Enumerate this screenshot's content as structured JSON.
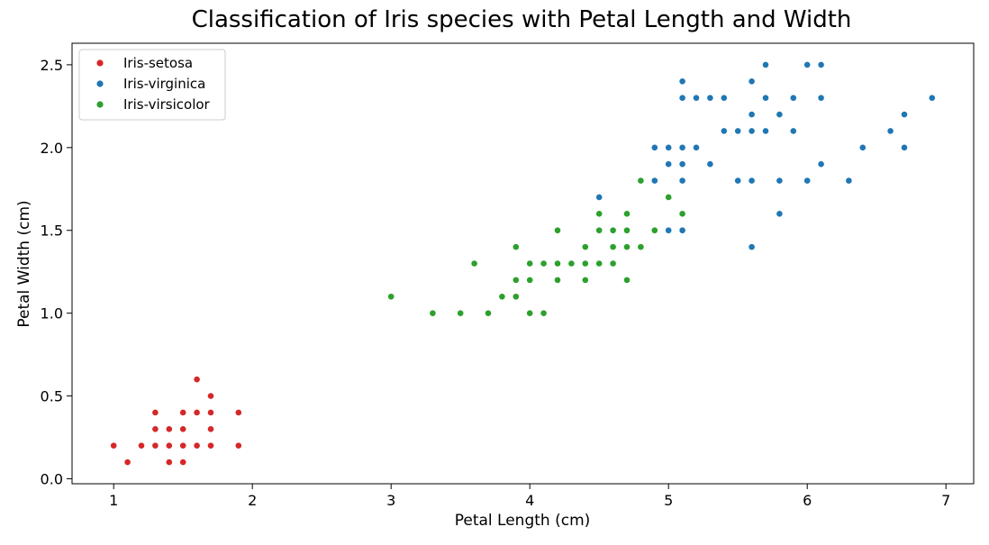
{
  "chart_data": {
    "type": "scatter",
    "title": "Classification of Iris species with Petal Length and Width",
    "xlabel": "Petal Length (cm)",
    "ylabel": "Petal Width (cm)",
    "xlim": [
      0.7,
      7.2
    ],
    "ylim": [
      -0.03,
      2.63
    ],
    "xticks": [
      1,
      2,
      3,
      4,
      5,
      6,
      7
    ],
    "yticks": [
      0.0,
      0.5,
      1.0,
      1.5,
      2.0,
      2.5
    ],
    "xtick_labels": [
      "1",
      "2",
      "3",
      "4",
      "5",
      "6",
      "7"
    ],
    "ytick_labels": [
      "0.0",
      "0.5",
      "1.0",
      "1.5",
      "2.0",
      "2.5"
    ],
    "grid": false,
    "legend_position": "top-left",
    "series": [
      {
        "name": "Iris-setosa",
        "color": "#d62728",
        "points": [
          [
            1.0,
            0.2
          ],
          [
            1.1,
            0.1
          ],
          [
            1.2,
            0.2
          ],
          [
            1.3,
            0.2
          ],
          [
            1.3,
            0.3
          ],
          [
            1.3,
            0.4
          ],
          [
            1.4,
            0.1
          ],
          [
            1.4,
            0.2
          ],
          [
            1.4,
            0.3
          ],
          [
            1.5,
            0.1
          ],
          [
            1.5,
            0.2
          ],
          [
            1.5,
            0.3
          ],
          [
            1.5,
            0.4
          ],
          [
            1.6,
            0.2
          ],
          [
            1.6,
            0.4
          ],
          [
            1.6,
            0.6
          ],
          [
            1.7,
            0.2
          ],
          [
            1.7,
            0.3
          ],
          [
            1.7,
            0.4
          ],
          [
            1.7,
            0.5
          ],
          [
            1.9,
            0.2
          ],
          [
            1.9,
            0.4
          ]
        ]
      },
      {
        "name": "Iris-virginica",
        "color": "#1f77b4",
        "points": [
          [
            4.5,
            1.7
          ],
          [
            4.9,
            1.8
          ],
          [
            4.9,
            2.0
          ],
          [
            5.0,
            1.5
          ],
          [
            5.0,
            1.9
          ],
          [
            5.0,
            2.0
          ],
          [
            5.1,
            1.5
          ],
          [
            5.1,
            1.8
          ],
          [
            5.1,
            1.9
          ],
          [
            5.1,
            2.0
          ],
          [
            5.1,
            2.3
          ],
          [
            5.1,
            2.4
          ],
          [
            5.2,
            2.0
          ],
          [
            5.2,
            2.3
          ],
          [
            5.3,
            1.9
          ],
          [
            5.3,
            2.3
          ],
          [
            5.4,
            2.1
          ],
          [
            5.4,
            2.3
          ],
          [
            5.5,
            1.8
          ],
          [
            5.5,
            2.1
          ],
          [
            5.6,
            1.4
          ],
          [
            5.6,
            1.8
          ],
          [
            5.6,
            2.1
          ],
          [
            5.6,
            2.2
          ],
          [
            5.6,
            2.4
          ],
          [
            5.7,
            2.1
          ],
          [
            5.7,
            2.3
          ],
          [
            5.7,
            2.5
          ],
          [
            5.8,
            1.6
          ],
          [
            5.8,
            1.8
          ],
          [
            5.8,
            2.2
          ],
          [
            5.9,
            2.1
          ],
          [
            5.9,
            2.3
          ],
          [
            6.0,
            1.8
          ],
          [
            6.0,
            2.5
          ],
          [
            6.1,
            1.9
          ],
          [
            6.1,
            2.3
          ],
          [
            6.1,
            2.5
          ],
          [
            6.3,
            1.8
          ],
          [
            6.4,
            2.0
          ],
          [
            6.6,
            2.1
          ],
          [
            6.7,
            2.0
          ],
          [
            6.7,
            2.2
          ],
          [
            6.9,
            2.3
          ]
        ]
      },
      {
        "name": "Iris-virsicolor",
        "color": "#2ca02c",
        "points": [
          [
            3.0,
            1.1
          ],
          [
            3.3,
            1.0
          ],
          [
            3.5,
            1.0
          ],
          [
            3.6,
            1.3
          ],
          [
            3.7,
            1.0
          ],
          [
            3.8,
            1.1
          ],
          [
            3.9,
            1.1
          ],
          [
            3.9,
            1.2
          ],
          [
            3.9,
            1.4
          ],
          [
            4.0,
            1.0
          ],
          [
            4.0,
            1.2
          ],
          [
            4.0,
            1.3
          ],
          [
            4.1,
            1.0
          ],
          [
            4.1,
            1.3
          ],
          [
            4.2,
            1.2
          ],
          [
            4.2,
            1.3
          ],
          [
            4.2,
            1.5
          ],
          [
            4.3,
            1.3
          ],
          [
            4.4,
            1.2
          ],
          [
            4.4,
            1.3
          ],
          [
            4.4,
            1.4
          ],
          [
            4.5,
            1.3
          ],
          [
            4.5,
            1.5
          ],
          [
            4.5,
            1.6
          ],
          [
            4.6,
            1.3
          ],
          [
            4.6,
            1.4
          ],
          [
            4.6,
            1.5
          ],
          [
            4.7,
            1.2
          ],
          [
            4.7,
            1.4
          ],
          [
            4.7,
            1.5
          ],
          [
            4.7,
            1.6
          ],
          [
            4.8,
            1.4
          ],
          [
            4.8,
            1.8
          ],
          [
            4.9,
            1.5
          ],
          [
            5.0,
            1.7
          ],
          [
            5.1,
            1.6
          ]
        ]
      }
    ]
  }
}
